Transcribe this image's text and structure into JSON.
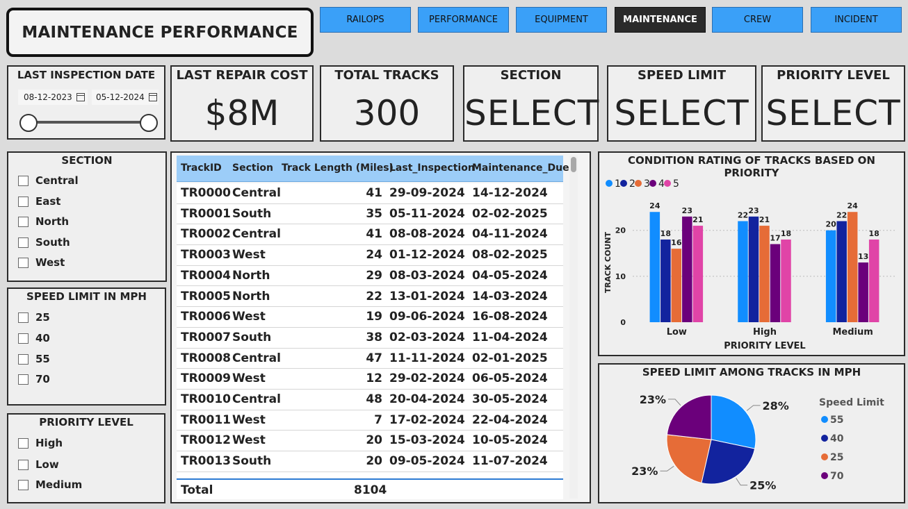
{
  "header": {
    "title": "MAINTENANCE PERFORMANCE"
  },
  "nav": [
    "RAILOPS",
    "PERFORMANCE",
    "EQUIPMENT",
    "MAINTENANCE",
    "CREW",
    "INCIDENT"
  ],
  "nav_active": "MAINTENANCE",
  "date_slicer": {
    "label": "LAST INSPECTION DATE",
    "start": "08-12-2023",
    "end": "05-12-2024"
  },
  "kpis": {
    "repair_cost": {
      "label": "LAST REPAIR COST",
      "value": "$8M"
    },
    "total_tracks": {
      "label": "TOTAL TRACKS",
      "value": "300"
    },
    "section": {
      "label": "SECTION",
      "value": "SELECT"
    },
    "speed_limit": {
      "label": "SPEED LIMIT",
      "value": "SELECT"
    },
    "priority": {
      "label": "PRIORITY LEVEL",
      "value": "SELECT"
    }
  },
  "slicers": {
    "section": {
      "title": "SECTION",
      "items": [
        "Central",
        "East",
        "North",
        "South",
        "West"
      ]
    },
    "speed": {
      "title": "SPEED LIMIT IN MPH",
      "items": [
        "25",
        "40",
        "55",
        "70"
      ]
    },
    "priority": {
      "title": "PRIORITY LEVEL",
      "items": [
        "High",
        "Low",
        "Medium"
      ]
    }
  },
  "table": {
    "columns": [
      "TrackID",
      "Section",
      "Track Length (Miles)",
      "Last_Inspection",
      "Maintenance_Due"
    ],
    "rows": [
      [
        "TR0000",
        "Central",
        "41",
        "29-09-2024",
        "14-12-2024"
      ],
      [
        "TR0001",
        "South",
        "35",
        "05-11-2024",
        "02-02-2025"
      ],
      [
        "TR0002",
        "Central",
        "41",
        "08-08-2024",
        "04-11-2024"
      ],
      [
        "TR0003",
        "West",
        "24",
        "01-12-2024",
        "08-02-2025"
      ],
      [
        "TR0004",
        "North",
        "29",
        "08-03-2024",
        "04-05-2024"
      ],
      [
        "TR0005",
        "North",
        "22",
        "13-01-2024",
        "14-03-2024"
      ],
      [
        "TR0006",
        "West",
        "19",
        "09-06-2024",
        "16-08-2024"
      ],
      [
        "TR0007",
        "South",
        "38",
        "02-03-2024",
        "11-04-2024"
      ],
      [
        "TR0008",
        "Central",
        "47",
        "11-11-2024",
        "02-01-2025"
      ],
      [
        "TR0009",
        "West",
        "12",
        "29-02-2024",
        "06-05-2024"
      ],
      [
        "TR0010",
        "Central",
        "48",
        "20-04-2024",
        "30-05-2024"
      ],
      [
        "TR0011",
        "West",
        "7",
        "17-02-2024",
        "22-04-2024"
      ],
      [
        "TR0012",
        "West",
        "20",
        "15-03-2024",
        "10-05-2024"
      ],
      [
        "TR0013",
        "South",
        "20",
        "09-05-2024",
        "11-07-2024"
      ]
    ],
    "total_label": "Total",
    "total_value": "8104"
  },
  "chart_data": [
    {
      "type": "bar",
      "title": "CONDITION RATING OF TRACKS BASED ON PRIORITY",
      "xlabel": "PRIORITY LEVEL",
      "ylabel": "TRACK COUNT",
      "categories": [
        "Low",
        "High",
        "Medium"
      ],
      "ylim": [
        0,
        26
      ],
      "yticks": [
        0,
        10,
        20
      ],
      "legend_position": "top-left",
      "series": [
        {
          "name": "1",
          "color": "#118dff",
          "values": [
            24,
            22,
            20
          ]
        },
        {
          "name": "2",
          "color": "#12239e",
          "values": [
            18,
            23,
            22
          ]
        },
        {
          "name": "3",
          "color": "#e66c37",
          "values": [
            16,
            21,
            24
          ]
        },
        {
          "name": "4",
          "color": "#6b007b",
          "values": [
            23,
            17,
            13
          ]
        },
        {
          "name": "5",
          "color": "#e044a7",
          "values": [
            21,
            18,
            18
          ]
        }
      ]
    },
    {
      "type": "pie",
      "title": "SPEED LIMIT AMONG TRACKS IN MPH",
      "legend_title": "Speed Limit",
      "legend_position": "right",
      "slices": [
        {
          "label": "55",
          "value": 28,
          "color": "#118dff"
        },
        {
          "label": "40",
          "value": 25,
          "color": "#12239e"
        },
        {
          "label": "25",
          "value": 23,
          "color": "#e66c37"
        },
        {
          "label": "70",
          "value": 23,
          "color": "#6b007b"
        }
      ]
    }
  ]
}
